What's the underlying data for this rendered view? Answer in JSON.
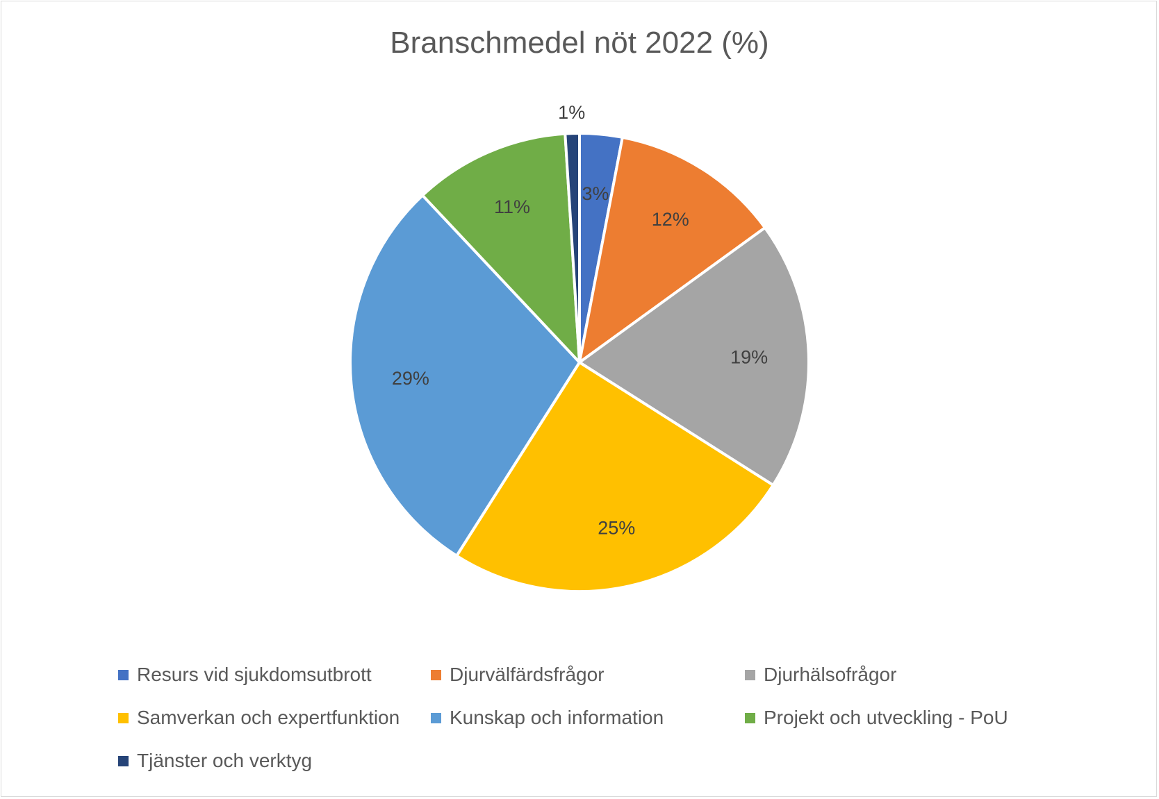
{
  "chart_data": {
    "type": "pie",
    "title": "Branschmedel nöt 2022 (%)",
    "legend_position": "bottom",
    "categories": [
      "Resurs vid sjukdomsutbrott",
      "Djurvälfärdsfrågor",
      "Djurhälsofrågor",
      "Samverkan och expertfunktion",
      "Kunskap och information",
      "Projekt och utveckling - PoU",
      "Tjänster och verktyg"
    ],
    "values": [
      3,
      12,
      19,
      25,
      29,
      11,
      1
    ],
    "labels": [
      "3%",
      "12%",
      "19%",
      "25%",
      "29%",
      "11%",
      "1%"
    ],
    "colors": [
      "#4472C4",
      "#ED7D31",
      "#A5A5A5",
      "#FFC000",
      "#5B9BD5",
      "#70AD47",
      "#264478"
    ]
  }
}
